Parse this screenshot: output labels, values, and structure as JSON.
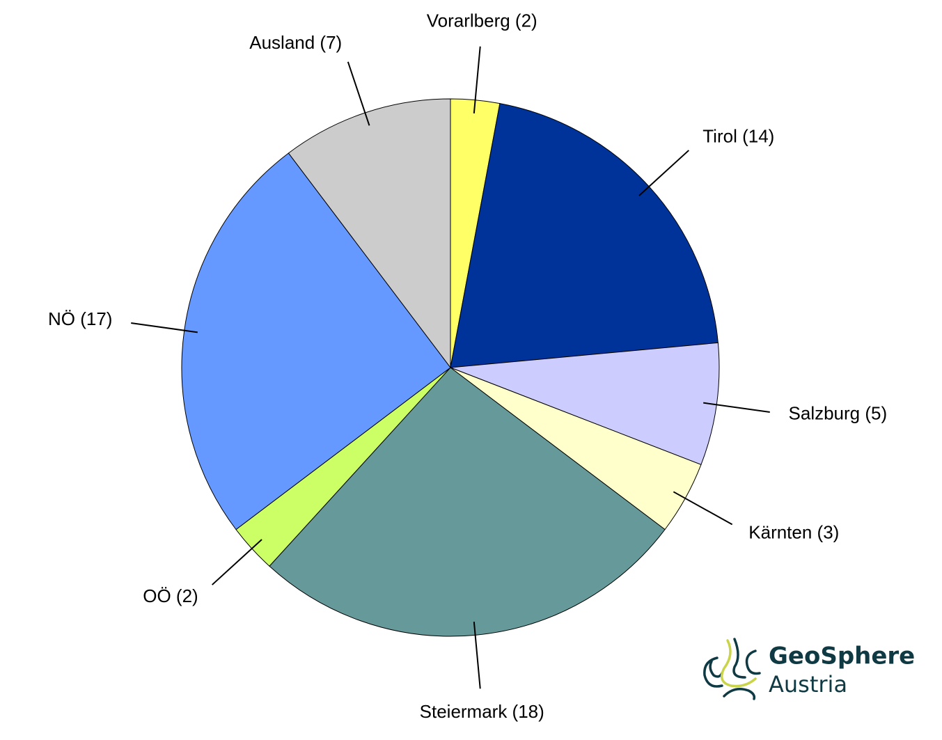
{
  "chart_data": {
    "type": "pie",
    "categories": [
      "Vorarlberg (2)",
      "Tirol (14)",
      "Salzburg (5)",
      "Kärnten (3)",
      "Steiermark (18)",
      "OÖ (2)",
      "NÖ (17)",
      "Ausland (7)"
    ],
    "values": [
      2,
      14,
      5,
      3,
      18,
      2,
      17,
      7
    ],
    "colors": [
      "#ffff66",
      "#003399",
      "#ccccff",
      "#ffffcc",
      "#669999",
      "#ccff66",
      "#6699ff",
      "#cccccc"
    ]
  },
  "logo": {
    "line1": "GeoSphere",
    "line2": "Austria"
  }
}
